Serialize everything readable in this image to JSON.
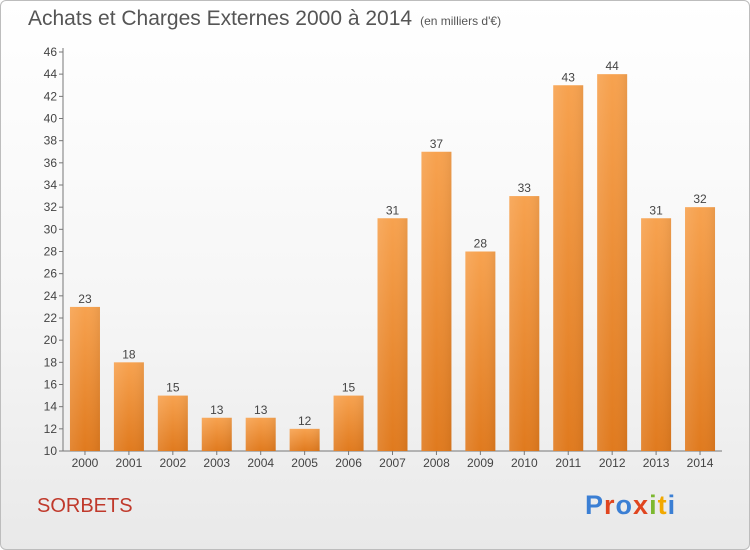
{
  "header": {
    "title": "Achats et Charges Externes 2000 à 2014",
    "unit": "(en milliers d'€)"
  },
  "footer": {
    "town": "SORBETS",
    "brand": "Proxiti"
  },
  "colors": {
    "bar_top": "#f7a24f",
    "bar_bottom": "#e07a1e",
    "town": "#c0392b",
    "brand_letters": [
      "#3b7fd4",
      "#e0451f",
      "#3b7fd4",
      "#e0451f",
      "#7cb82f",
      "#f2a900",
      "#3b7fd4"
    ]
  },
  "chart_data": {
    "type": "bar",
    "title": "Achats et Charges Externes 2000 à 2014",
    "subtitle": "(en milliers d'€)",
    "xlabel": "",
    "ylabel": "",
    "categories": [
      "2000",
      "2001",
      "2002",
      "2003",
      "2004",
      "2005",
      "2006",
      "2007",
      "2008",
      "2009",
      "2010",
      "2011",
      "2012",
      "2013",
      "2014"
    ],
    "values": [
      23,
      18,
      15,
      13,
      13,
      12,
      15,
      31,
      37,
      28,
      33,
      43,
      44,
      31,
      32
    ],
    "ylim": [
      10,
      46
    ],
    "yticks": [
      10,
      12,
      14,
      16,
      18,
      20,
      22,
      24,
      26,
      28,
      30,
      32,
      34,
      36,
      38,
      40,
      42,
      44,
      46
    ],
    "grid": false,
    "data_labels": true
  }
}
